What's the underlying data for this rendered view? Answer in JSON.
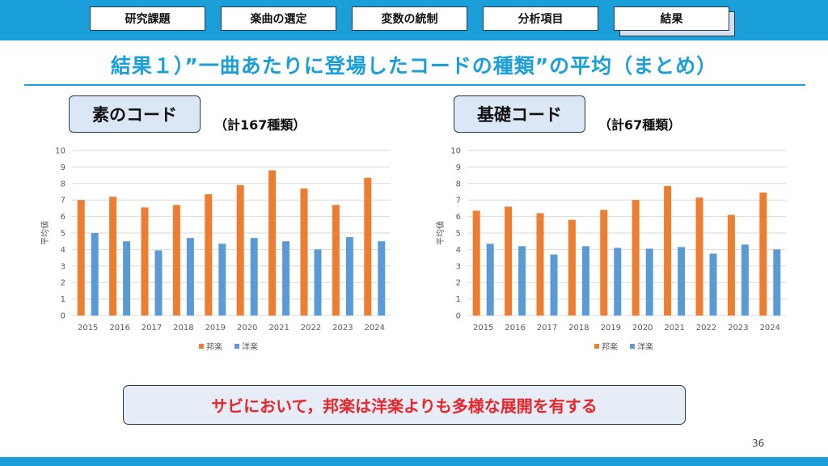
{
  "nav": {
    "items": [
      {
        "label": "研究課題"
      },
      {
        "label": "楽曲の選定"
      },
      {
        "label": "変数の統制"
      },
      {
        "label": "分析項目"
      },
      {
        "label": "結果"
      }
    ],
    "active_index": 4
  },
  "title": "結果１）”一曲あたりに登場したコードの種類”の平均（まとめ）",
  "charts": [
    {
      "label": "素のコード",
      "count_text": "（計167種類）"
    },
    {
      "label": "基礎コード",
      "count_text": "（計67種類）"
    }
  ],
  "chart_data": [
    {
      "type": "bar",
      "ylabel": "平均値",
      "ylim": [
        0,
        10
      ],
      "yticks": [
        0,
        1,
        2,
        3,
        4,
        5,
        6,
        7,
        8,
        9,
        10
      ],
      "categories": [
        "2015",
        "2016",
        "2017",
        "2018",
        "2019",
        "2020",
        "2021",
        "2022",
        "2023",
        "2024"
      ],
      "series": [
        {
          "name": "邦楽",
          "color": "#ed7d31",
          "values": [
            7.0,
            7.2,
            6.55,
            6.7,
            7.35,
            7.9,
            8.8,
            7.7,
            6.7,
            8.35
          ]
        },
        {
          "name": "洋楽",
          "color": "#5b9bd5",
          "values": [
            5.0,
            4.5,
            3.95,
            4.7,
            4.35,
            4.7,
            4.5,
            4.0,
            4.75,
            4.5
          ]
        }
      ],
      "grid": true,
      "legend": "bottom"
    },
    {
      "type": "bar",
      "ylabel": "平均値",
      "ylim": [
        0,
        10
      ],
      "yticks": [
        0,
        1,
        2,
        3,
        4,
        5,
        6,
        7,
        8,
        9,
        10
      ],
      "categories": [
        "2015",
        "2016",
        "2017",
        "2018",
        "2019",
        "2020",
        "2021",
        "2022",
        "2023",
        "2024"
      ],
      "series": [
        {
          "name": "邦楽",
          "color": "#ed7d31",
          "values": [
            6.35,
            6.6,
            6.2,
            5.8,
            6.4,
            7.0,
            7.85,
            7.15,
            6.1,
            7.45
          ]
        },
        {
          "name": "洋楽",
          "color": "#5b9bd5",
          "values": [
            4.35,
            4.2,
            3.7,
            4.2,
            4.1,
            4.05,
            4.15,
            3.75,
            4.3,
            4.0
          ]
        }
      ],
      "grid": true,
      "legend": "bottom"
    }
  ],
  "conclusion": "サビにおいて，邦楽は洋楽よりも多様な展開を有する",
  "page_number": "36"
}
